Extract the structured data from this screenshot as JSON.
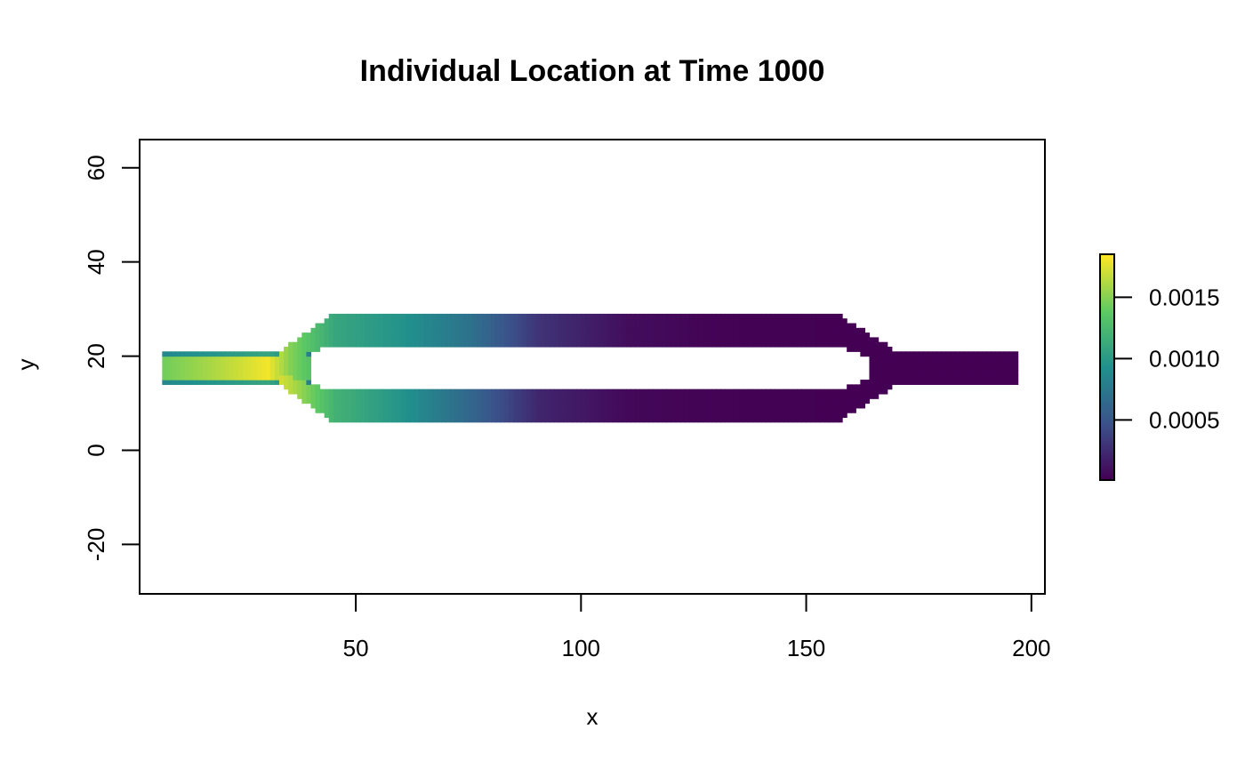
{
  "chart_data": {
    "type": "heatmap",
    "title": "Individual Location at Time 1000",
    "xlabel": "x",
    "ylabel": "y",
    "xlim": [
      2,
      203
    ],
    "ylim": [
      -30.5,
      66
    ],
    "x_ticks": [
      50,
      100,
      150,
      200
    ],
    "y_ticks": [
      -20,
      0,
      20,
      40,
      60
    ],
    "grid": false,
    "legend": "right",
    "colorbar": {
      "ticks": [
        0.0005,
        0.001,
        0.0015
      ],
      "tick_labels": [
        "0.0005",
        "0.0010",
        "0.0015"
      ],
      "range": [
        1e-05,
        0.00185
      ],
      "palette": "viridis",
      "palette_stops": [
        "#440154",
        "#3b528b",
        "#21908d",
        "#5dc963",
        "#fde725"
      ]
    },
    "domain": {
      "inlet": {
        "x": [
          7,
          40
        ],
        "y": [
          14,
          21
        ]
      },
      "upper_branch": {
        "x": [
          45,
          157
        ],
        "y": [
          22,
          29
        ]
      },
      "lower_branch": {
        "x": [
          45,
          157
        ],
        "y": [
          6,
          13
        ]
      },
      "outlet": {
        "x": [
          170,
          197
        ],
        "y": [
          14,
          21
        ]
      },
      "split_x": [
        33,
        45
      ],
      "merge_x": [
        157,
        170
      ]
    },
    "density_profile": {
      "description_points_x": [
        7,
        20,
        30,
        35,
        45,
        60,
        75,
        90,
        110,
        130,
        160,
        197
      ],
      "upper_values": [
        0.00145,
        0.00165,
        0.00182,
        0.0015,
        0.0011,
        0.00095,
        0.0007,
        0.0003,
        8e-05,
        2e-05,
        1e-05,
        1e-05
      ],
      "lower_values": [
        0.00145,
        0.00165,
        0.00182,
        0.00165,
        0.0012,
        0.00095,
        0.00062,
        0.00022,
        5e-05,
        2e-05,
        1e-05,
        1e-05
      ]
    }
  }
}
